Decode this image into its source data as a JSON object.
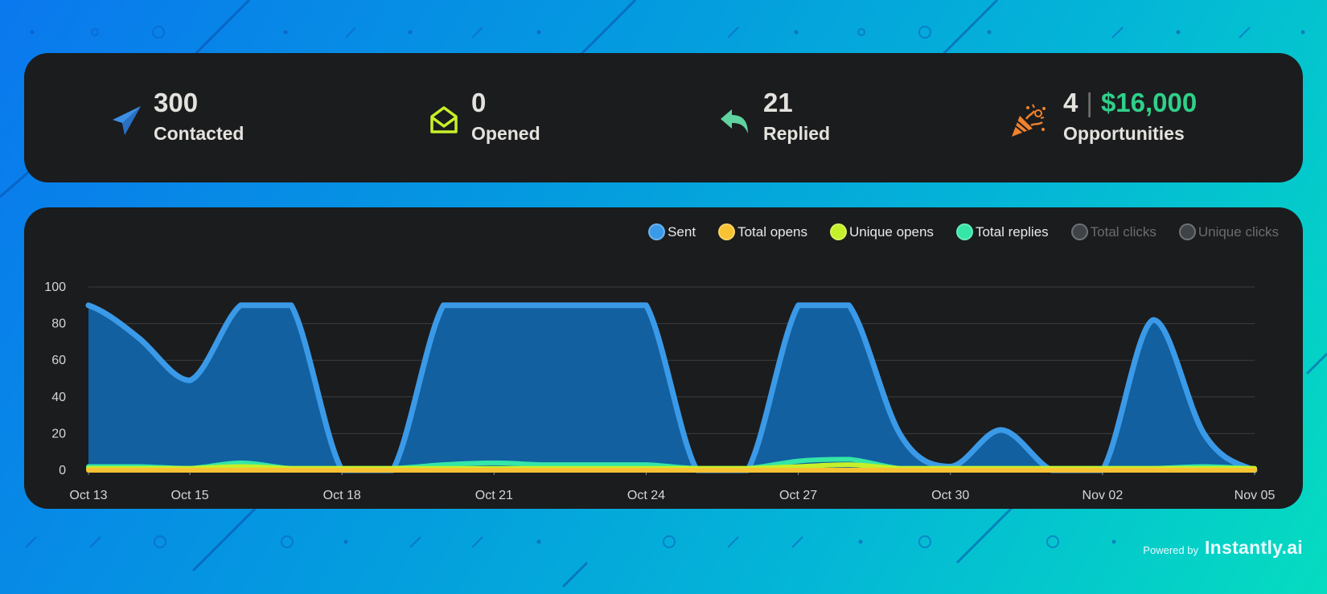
{
  "stats": [
    {
      "value": "300",
      "label": "Contacted",
      "icon": "paper-plane-icon",
      "color": "#3d8fe4"
    },
    {
      "value": "0",
      "label": "Opened",
      "icon": "open-envelope-icon",
      "color": "#c8f02a"
    },
    {
      "value": "21",
      "label": "Replied",
      "icon": "reply-arrow-icon",
      "color": "#5fd3a0"
    },
    {
      "value": "4",
      "money": "$16,000",
      "separator": "|",
      "label": "Opportunities",
      "icon": "party-popper-icon",
      "color": "#f0822c"
    }
  ],
  "legend": [
    {
      "label": "Sent",
      "color": "#3b9ae8",
      "active": true
    },
    {
      "label": "Total opens",
      "color": "#f9c233",
      "active": true
    },
    {
      "label": "Unique opens",
      "color": "#c6f02a",
      "active": true
    },
    {
      "label": "Total replies",
      "color": "#34e6a7",
      "active": true
    },
    {
      "label": "Total clicks",
      "color": "#3e4347",
      "active": false
    },
    {
      "label": "Unique clicks",
      "color": "#3e4347",
      "active": false
    }
  ],
  "chart_data": {
    "type": "area",
    "x": [
      "Oct 13",
      "Oct 14",
      "Oct 15",
      "Oct 16",
      "Oct 17",
      "Oct 18",
      "Oct 19",
      "Oct 20",
      "Oct 21",
      "Oct 22",
      "Oct 23",
      "Oct 24",
      "Oct 25",
      "Oct 26",
      "Oct 27",
      "Oct 28",
      "Oct 29",
      "Oct 30",
      "Oct 31",
      "Nov 01",
      "Nov 02",
      "Nov 03",
      "Nov 04",
      "Nov 05"
    ],
    "xticks": [
      "Oct 13",
      "Oct 15",
      "Oct 18",
      "Oct 21",
      "Oct 24",
      "Oct 27",
      "Oct 30",
      "Nov 02",
      "Nov 05"
    ],
    "ylim": [
      0,
      100
    ],
    "yticks": [
      0,
      20,
      40,
      60,
      80,
      100
    ],
    "grid": true,
    "series": [
      {
        "name": "Sent",
        "color": "#3b9ae8",
        "fill": "#1264a8",
        "values": [
          90,
          72,
          49,
          90,
          90,
          0,
          0,
          90,
          90,
          90,
          90,
          90,
          0,
          0,
          90,
          90,
          20,
          2,
          22,
          0,
          0,
          82,
          20,
          0
        ]
      },
      {
        "name": "Total replies",
        "color": "#34e6a7",
        "values": [
          2,
          2,
          1,
          4,
          1,
          1,
          1,
          3,
          4,
          3,
          3,
          3,
          1,
          1,
          5,
          6,
          1,
          1,
          1,
          1,
          1,
          1,
          2,
          1
        ]
      },
      {
        "name": "Unique opens",
        "color": "#c6f02a",
        "values": [
          1,
          1,
          1,
          2,
          1,
          1,
          1,
          1,
          1,
          1,
          1,
          1,
          1,
          1,
          2,
          3,
          1,
          1,
          1,
          1,
          1,
          1,
          1,
          1
        ]
      },
      {
        "name": "Total opens",
        "color": "#f9c233",
        "values": [
          0,
          0,
          0,
          0,
          0,
          0,
          0,
          0,
          0,
          0,
          0,
          0,
          0,
          0,
          0,
          0,
          0,
          0,
          0,
          0,
          0,
          0,
          0,
          0
        ]
      }
    ]
  },
  "footer": {
    "powered_by": "Powered by",
    "brand": "Instantly.ai"
  }
}
